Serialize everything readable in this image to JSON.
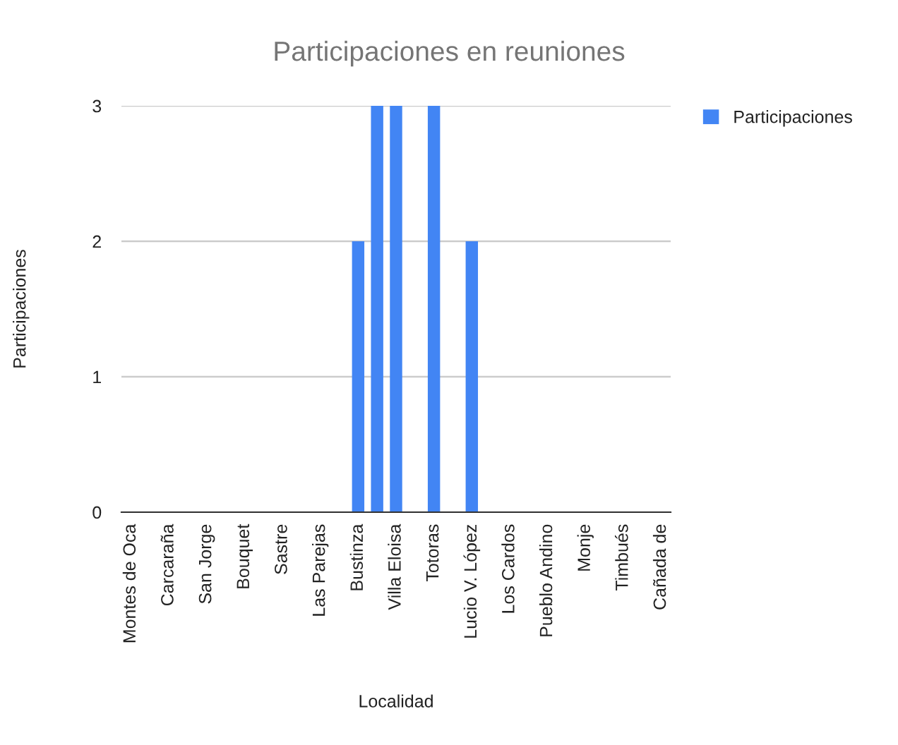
{
  "chart_data": {
    "type": "bar",
    "title": "Participaciones en reuniones",
    "xlabel": "Localidad",
    "ylabel": "Participaciones",
    "categories": [
      "Montes de Oca",
      null,
      "Carcaraña",
      null,
      "San Jorge",
      null,
      "Bouquet",
      null,
      "Sastre",
      null,
      "Las Parejas",
      null,
      "Bustinza",
      null,
      "Villa Eloisa",
      null,
      "Totoras",
      null,
      "Lucio V. López",
      null,
      "Los Cardos",
      null,
      "Pueblo Andino",
      null,
      "Monje",
      null,
      "Timbués",
      null,
      "Cañada de"
    ],
    "series": [
      {
        "name": "Participaciones",
        "color": "#4285f4",
        "values": [
          0,
          0,
          0,
          0,
          0,
          0,
          0,
          0,
          0,
          0,
          0,
          0,
          2,
          3,
          3,
          0,
          3,
          0,
          2,
          0,
          0,
          0,
          0,
          0,
          0,
          0,
          0,
          0,
          0
        ]
      }
    ],
    "ylim": [
      0,
      3
    ],
    "yticks": [
      0,
      1,
      2,
      3
    ],
    "grid": "y",
    "legend": "top right"
  }
}
